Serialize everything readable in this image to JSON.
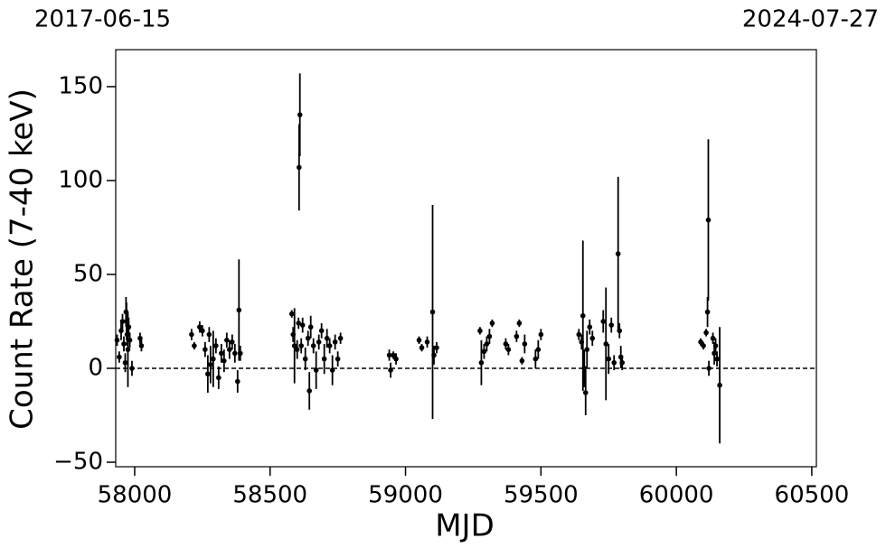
{
  "chart_data": {
    "type": "errorbar_scatter",
    "top_labels": [
      "2017-06-15",
      "2024-07-27"
    ],
    "xlabel": "MJD",
    "ylabel": "Count Rate (7-40 keV)",
    "xlim": [
      57930,
      60517
    ],
    "ylim": [
      -52.4,
      169.7
    ],
    "xticks": [
      58000,
      58500,
      59000,
      59500,
      60000,
      60500
    ],
    "yticks": [
      {
        "value": -50,
        "label": "−50"
      },
      0,
      50,
      100,
      150
    ],
    "hline": 0,
    "color": "#000000",
    "x": [
      57935,
      57943,
      57950,
      57955,
      57960,
      57965,
      57968,
      57970,
      57972,
      57975,
      57978,
      57982,
      57990,
      58020,
      58025,
      58210,
      58220,
      58240,
      58250,
      58260,
      58270,
      58275,
      58280,
      58290,
      58300,
      58310,
      58320,
      58330,
      58340,
      58350,
      58360,
      58370,
      58380,
      58385,
      58390,
      58580,
      58585,
      58590,
      58600,
      58605,
      58610,
      58607,
      58615,
      58620,
      58630,
      58640,
      58645,
      58650,
      58660,
      58670,
      58680,
      58690,
      58700,
      58710,
      58720,
      58730,
      58740,
      58750,
      58760,
      58940,
      58945,
      58955,
      58965,
      59050,
      59060,
      59080,
      59100,
      59105,
      59115,
      59275,
      59280,
      59290,
      59300,
      59310,
      59320,
      59370,
      59380,
      59410,
      59420,
      59430,
      59440,
      59480,
      59490,
      59500,
      59640,
      59650,
      59655,
      59660,
      59665,
      59670,
      59680,
      59690,
      59730,
      59740,
      59750,
      59760,
      59770,
      59785,
      59790,
      59795,
      59800,
      60090,
      60100,
      60110,
      60115,
      60118,
      60120,
      60135,
      60140,
      60145,
      60150,
      60160
    ],
    "values": [
      15,
      6,
      20,
      25,
      13,
      3,
      30,
      25,
      18,
      10,
      22,
      15,
      0,
      16,
      12,
      18,
      12,
      22,
      20,
      10,
      -3,
      18,
      2,
      5,
      12,
      -5,
      8,
      4,
      15,
      10,
      14,
      8,
      -7,
      31,
      8,
      29,
      18,
      12,
      10,
      24,
      135,
      107,
      12,
      23,
      5,
      16,
      -12,
      22,
      12,
      -1,
      14,
      20,
      5,
      16,
      12,
      -1,
      14,
      5,
      16,
      7,
      -1,
      7,
      5,
      15,
      11,
      14,
      30,
      7,
      11,
      20,
      3,
      9,
      13,
      17,
      24,
      13,
      10,
      17,
      24,
      4,
      13,
      5,
      10,
      18,
      18,
      14,
      28,
      0,
      -13,
      10,
      22,
      16,
      25,
      13,
      5,
      23,
      3,
      61,
      20,
      6,
      3,
      14,
      12,
      19,
      30,
      79,
      0,
      16,
      8,
      12,
      5,
      -9
    ],
    "errors": [
      3,
      3,
      5,
      4,
      4,
      5,
      8,
      10,
      6,
      20,
      5,
      4,
      4,
      3,
      3,
      3,
      2,
      3,
      3,
      4,
      10,
      4,
      10,
      15,
      4,
      6,
      5,
      6,
      4,
      5,
      4,
      5,
      6,
      27,
      4,
      2,
      4,
      20,
      5,
      3,
      22,
      23,
      4,
      4,
      6,
      4,
      10,
      6,
      4,
      10,
      4,
      4,
      8,
      5,
      4,
      8,
      4,
      4,
      3,
      3,
      4,
      2,
      3,
      2,
      2,
      3,
      57,
      5,
      3,
      2,
      12,
      4,
      4,
      4,
      2,
      3,
      3,
      3,
      2,
      2,
      5,
      5,
      5,
      3,
      3,
      4,
      40,
      10,
      12,
      10,
      4,
      4,
      6,
      30,
      8,
      4,
      4,
      41,
      4,
      6,
      4,
      2,
      2,
      2,
      8,
      43,
      4,
      3,
      6,
      4,
      4,
      31
    ]
  }
}
